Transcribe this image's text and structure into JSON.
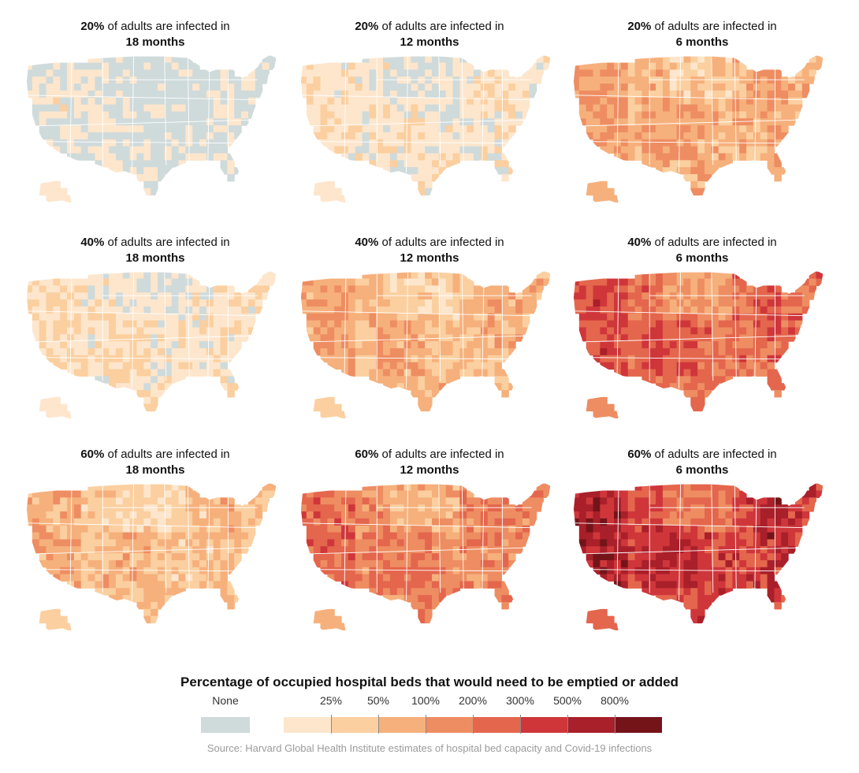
{
  "panels": [
    {
      "percent": "20%",
      "label": "of adults are infected in",
      "duration": "18 months",
      "intensity": 0.2
    },
    {
      "percent": "20%",
      "label": "of adults are infected in",
      "duration": "12 months",
      "intensity": 0.8
    },
    {
      "percent": "20%",
      "label": "of adults are infected in",
      "duration": "6 months",
      "intensity": 2.8
    },
    {
      "percent": "40%",
      "label": "of adults are infected in",
      "duration": "18 months",
      "intensity": 1.0
    },
    {
      "percent": "40%",
      "label": "of adults are infected in",
      "duration": "12 months",
      "intensity": 2.6
    },
    {
      "percent": "40%",
      "label": "of adults are infected in",
      "duration": "6 months",
      "intensity": 4.6
    },
    {
      "percent": "60%",
      "label": "of adults are infected in",
      "duration": "18 months",
      "intensity": 2.3
    },
    {
      "percent": "60%",
      "label": "of adults are infected in",
      "duration": "12 months",
      "intensity": 3.9
    },
    {
      "percent": "60%",
      "label": "of adults are infected in",
      "duration": "6 months",
      "intensity": 5.7
    }
  ],
  "legend": {
    "title": "Percentage of occupied hospital beds that would need to be emptied or added",
    "none_label": "None",
    "none_color": "#cfdadb",
    "ticks": [
      "25%",
      "50%",
      "100%",
      "200%",
      "300%",
      "500%",
      "800%"
    ],
    "colors": [
      "#fde6cc",
      "#fbcf9f",
      "#f6b07c",
      "#ee8d62",
      "#e4664d",
      "#cf363a",
      "#a91f2a",
      "#741419"
    ]
  },
  "source": "Source: Harvard Global Health Institute estimates of hospital bed capacity and Covid-19 infections"
}
